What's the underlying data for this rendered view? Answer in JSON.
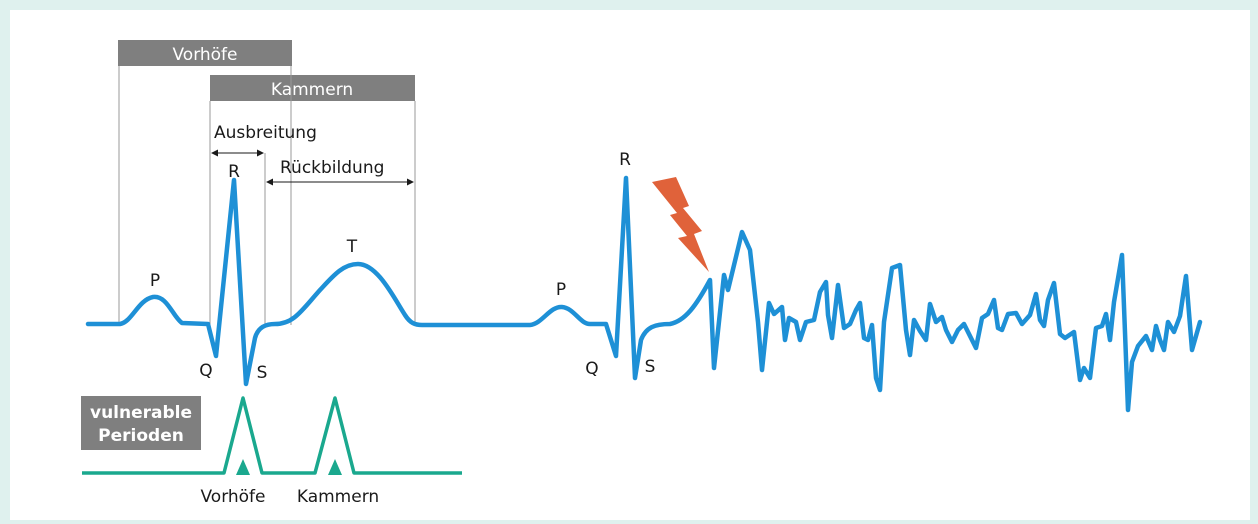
{
  "header": {
    "vorhoefe": "Vorhöfe",
    "kammern": "Kammern"
  },
  "annotations": {
    "ausbreitung": "Ausbreitung",
    "rueckbildung": "Rückbildung"
  },
  "waves": {
    "beat1": {
      "p": "P",
      "q": "Q",
      "r": "R",
      "s": "S",
      "t": "T"
    },
    "beat2": {
      "p": "P",
      "q": "Q",
      "r": "R",
      "s": "S"
    }
  },
  "vulnerable": {
    "title_line1": "vulnerable",
    "title_line2": "Perioden",
    "atria": "Vorhöfe",
    "ventricles": "Kammern"
  },
  "colors": {
    "ecg": "#1e90d6",
    "vulnerable": "#1aa88e",
    "label_box": "#7f7f7f",
    "lightning": "#e0623a",
    "background": "#dff1ee"
  },
  "icons": {
    "shock": "lightning-bolt-icon"
  }
}
